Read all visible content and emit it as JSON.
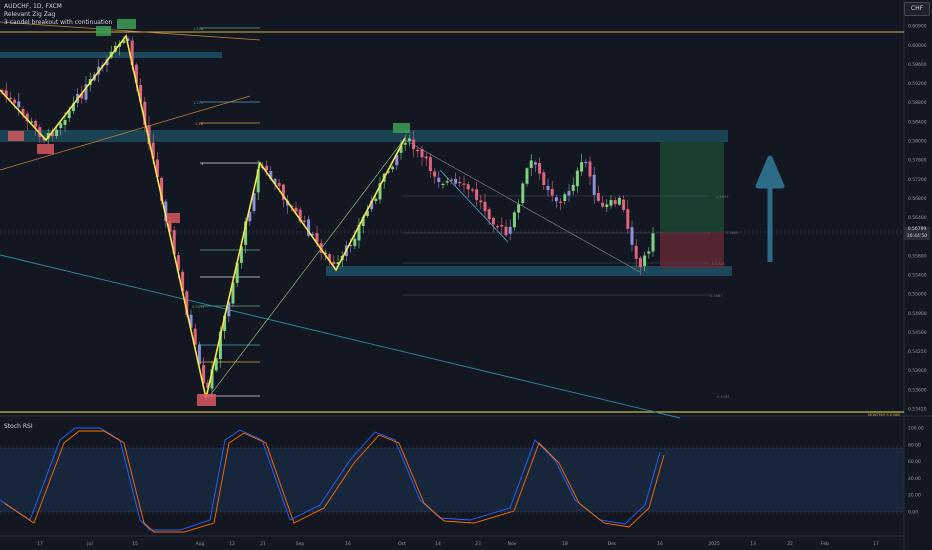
{
  "header": {
    "symbol_line": "AUDCHF, 1D, FXCM",
    "indicator_1": "Relevant Zig Zag",
    "indicator_2": "3 candel breakout with continuation"
  },
  "currency_button": "CHF",
  "price_axis": {
    "labels": [
      "0.61500",
      "0.60900",
      "0.60000",
      "0.59600",
      "0.59200",
      "0.58800",
      "0.58400",
      "0.58000",
      "0.57600",
      "0.57200",
      "0.56800",
      "0.56400",
      "0.56100",
      "0.55800",
      "0.55400",
      "0.55000",
      "0.54900",
      "0.54500",
      "0.54250",
      "0.53900",
      "0.53600",
      "0.53420"
    ],
    "current_price": "0.56799",
    "current_time": "16:44:50"
  },
  "rsi": {
    "title": "Stoch RSI",
    "axis_labels": [
      "100.00",
      "80.00",
      "60.00",
      "40.00",
      "20.00",
      "0.00"
    ]
  },
  "time_axis": {
    "labels": [
      "17",
      "Jul",
      "15",
      "Aug",
      "12",
      "21",
      "Sep",
      "16",
      "Oct",
      "14",
      "23",
      "Nov",
      "18",
      "Dec",
      "16",
      "2025",
      "13",
      "22",
      "Feb",
      "17"
    ]
  },
  "annotations": {
    "monthly_support": "MONTHLY S.E.NKE",
    "fib_labels": [
      "1.618",
      "1.272",
      "1.18",
      "1",
      "0.5893",
      "0.5868",
      "0.5735",
      "0.5667",
      "0.5393",
      "0.5571"
    ]
  },
  "colors": {
    "background": "#131722",
    "bull_candle": "#7fd07f",
    "bear_candle": "#e0637e",
    "alt_candle": "#8d8fd6",
    "zigzag": "#f6e84a",
    "zone": "#1f5f73",
    "arrow": "#2e6b86"
  }
}
